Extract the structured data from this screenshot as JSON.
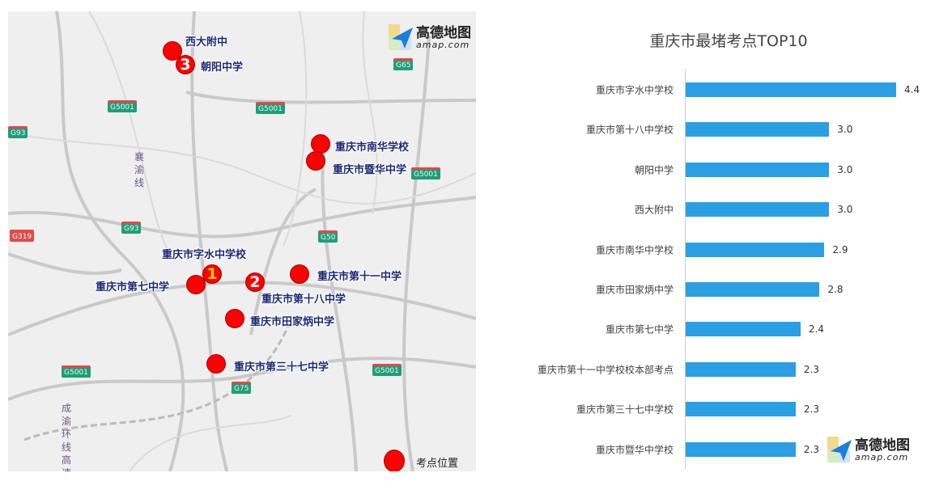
{
  "map": {
    "markers": [
      {
        "name": "西大附中",
        "rank": ""
      },
      {
        "name": "朝阳中学",
        "rank": "3"
      },
      {
        "name": "重庆市南华学校",
        "rank": ""
      },
      {
        "name": "重庆市暨华中学",
        "rank": ""
      },
      {
        "name": "重庆市字水中学校",
        "rank": "1"
      },
      {
        "name": "重庆市第七中学",
        "rank": ""
      },
      {
        "name": "重庆市第十八中学",
        "rank": "2"
      },
      {
        "name": "重庆市第十一中学",
        "rank": ""
      },
      {
        "name": "重庆市田家炳中学",
        "rank": ""
      },
      {
        "name": "重庆市第三十七中学",
        "rank": ""
      }
    ],
    "highways": [
      "G5001",
      "G5001",
      "G5001",
      "G5001",
      "G5001",
      "G93",
      "G93",
      "G319",
      "G65",
      "G50",
      "G75"
    ],
    "rail_labels": [
      "襄渝线",
      "成渝环线高速"
    ],
    "legend": "考点位置",
    "marker_color": "#ff0000",
    "logo": {
      "cn": "高德地图",
      "en": "amap.com"
    }
  },
  "chart_data": {
    "type": "bar",
    "orientation": "horizontal",
    "title": "重庆市最堵考点TOP10",
    "categories": [
      "重庆市字水中学校",
      "重庆市第十八中学校",
      "朝阳中学",
      "西大附中",
      "重庆市南华中学校",
      "重庆市田家炳中学",
      "重庆市第七中学",
      "重庆市第十一中学校校本部考点",
      "重庆市第三十七中学校",
      "重庆市暨华中学校"
    ],
    "values": [
      4.4,
      3.0,
      3.0,
      3.0,
      2.9,
      2.8,
      2.4,
      2.3,
      2.3,
      2.3
    ],
    "value_labels": [
      "4.4",
      "3.0",
      "3.0",
      "3.0",
      "2.9",
      "2.8",
      "2.4",
      "2.3",
      "2.3",
      "2.3"
    ],
    "bar_color": "#2a9fe4",
    "grid": false,
    "legend": "none"
  },
  "chart_logo": {
    "cn": "高德地图",
    "en": "amap.com"
  }
}
